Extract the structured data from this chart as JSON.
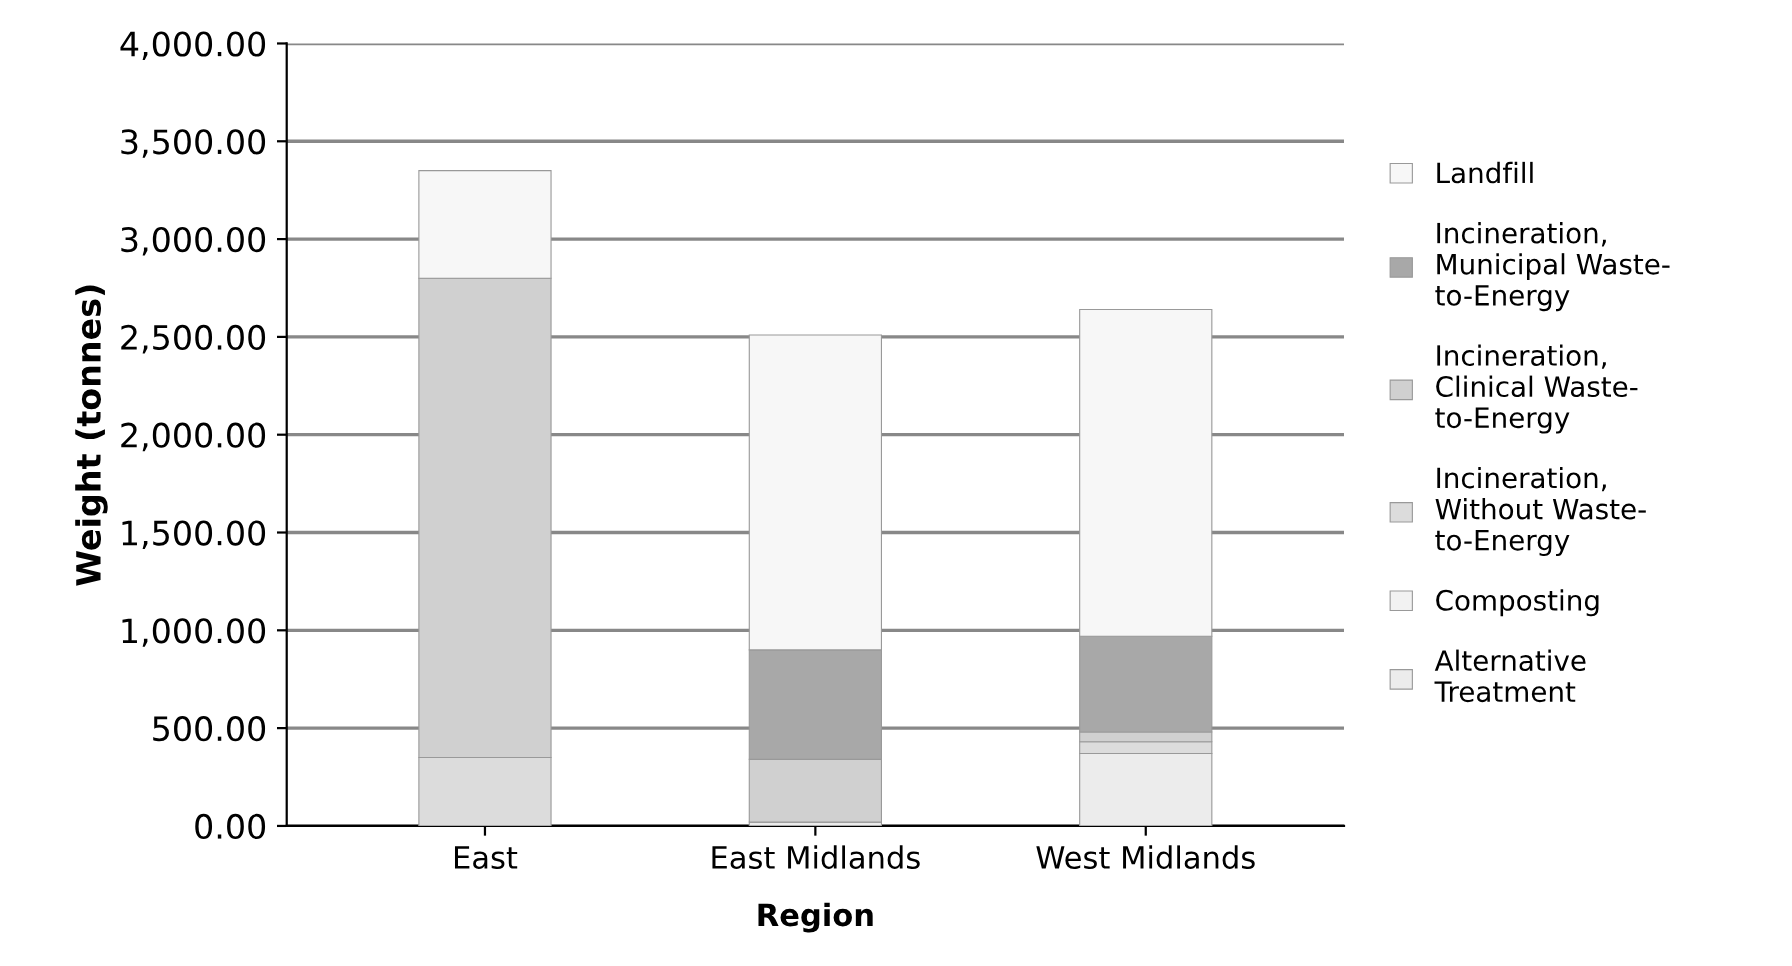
{
  "chart_data": {
    "type": "bar",
    "stacked": true,
    "xlabel": "Region",
    "ylabel": "Weight (tonnes)",
    "categories": [
      "East",
      "East Midlands",
      "West Midlands"
    ],
    "series": [
      {
        "name": "Alternative Treatment",
        "color": "#ececec",
        "values": [
          0,
          20,
          370
        ]
      },
      {
        "name": "Composting",
        "color": "#f2f2f2",
        "values": [
          0,
          0,
          0
        ]
      },
      {
        "name": "Incineration, Without Waste-to-Energy",
        "color": "#dcdcdc",
        "values": [
          350,
          0,
          60
        ]
      },
      {
        "name": "Incineration, Clinical Waste-to-Energy",
        "color": "#d0d0d0",
        "values": [
          2450,
          320,
          50
        ]
      },
      {
        "name": "Incineration, Municipal Waste-to-Energy",
        "color": "#a8a8a8",
        "values": [
          0,
          560,
          490
        ]
      },
      {
        "name": "Landfill",
        "color": "#f7f7f7",
        "values": [
          550,
          1610,
          1670
        ]
      }
    ],
    "ylim": [
      0,
      4000
    ],
    "yticks": [
      {
        "value": 0,
        "label": "0.00"
      },
      {
        "value": 500,
        "label": "500.00"
      },
      {
        "value": 1000,
        "label": "1,000.00"
      },
      {
        "value": 1500,
        "label": "1,500.00"
      },
      {
        "value": 2000,
        "label": "2,000.00"
      },
      {
        "value": 2500,
        "label": "2,500.00"
      },
      {
        "value": 3000,
        "label": "3,000.00"
      },
      {
        "value": 3500,
        "label": "3,500.00"
      },
      {
        "value": 4000,
        "label": "4,000.00"
      }
    ],
    "grid": "y",
    "legend": "right"
  }
}
